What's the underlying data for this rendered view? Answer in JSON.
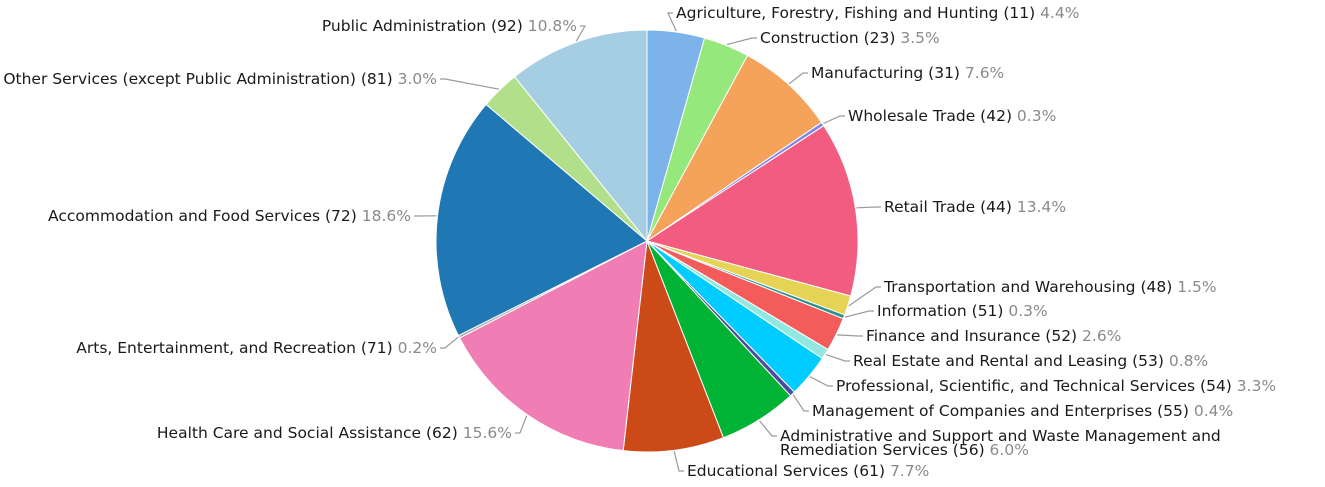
{
  "chart_data": {
    "type": "pie",
    "title": "",
    "slices": [
      {
        "label": "Agriculture, Forestry, Fishing and Hunting (11)",
        "percent_label": "4.4%",
        "value": 4.4,
        "color": "#7cb3e9"
      },
      {
        "label": "Construction (23)",
        "percent_label": "3.5%",
        "value": 3.5,
        "color": "#94e87c"
      },
      {
        "label": "Manufacturing (31)",
        "percent_label": "7.6%",
        "value": 7.6,
        "color": "#f5a25b"
      },
      {
        "label": "Wholesale Trade (42)",
        "percent_label": "0.3%",
        "value": 0.3,
        "color": "#8085e9"
      },
      {
        "label": "Retail Trade (44)",
        "percent_label": "13.4%",
        "value": 13.4,
        "color": "#f15c80"
      },
      {
        "label": "Transportation and Warehousing (48)",
        "percent_label": "1.5%",
        "value": 1.5,
        "color": "#e4d354"
      },
      {
        "label": "Information (51)",
        "percent_label": "0.3%",
        "value": 0.3,
        "color": "#2b908f"
      },
      {
        "label": "Finance and Insurance (52)",
        "percent_label": "2.6%",
        "value": 2.6,
        "color": "#f45b5b"
      },
      {
        "label": "Real Estate and Rental and Leasing (53)",
        "percent_label": "0.8%",
        "value": 0.8,
        "color": "#91e8e1"
      },
      {
        "label": "Professional, Scientific, and Technical Services (54)",
        "percent_label": "3.3%",
        "value": 3.3,
        "color": "#00ccff"
      },
      {
        "label": "Management of Companies and Enterprises (55)",
        "percent_label": "0.4%",
        "value": 0.4,
        "color": "#4a4a9e"
      },
      {
        "label": "Administrative and Support and Waste Management and Remediation Services (56)",
        "label_lines": [
          "Administrative and Support and Waste Management and",
          "Remediation Services (56)"
        ],
        "percent_label": "6.0%",
        "value": 6.0,
        "color": "#00b335"
      },
      {
        "label": "Educational Services (61)",
        "percent_label": "7.7%",
        "value": 7.7,
        "color": "#cc4a17"
      },
      {
        "label": "Health Care and Social Assistance (62)",
        "percent_label": "15.6%",
        "value": 15.6,
        "color": "#f07eb4"
      },
      {
        "label": "Arts, Entertainment, and Recreation (71)",
        "percent_label": "0.2%",
        "value": 0.2,
        "color": "#a8a8a8"
      },
      {
        "label": "Accommodation and Food Services (72)",
        "percent_label": "18.6%",
        "value": 18.6,
        "color": "#1f77b4"
      },
      {
        "label": "Other Services (except Public Administration) (81)",
        "percent_label": "3.0%",
        "value": 3.0,
        "color": "#b2df8a"
      },
      {
        "label": "Public Administration (92)",
        "percent_label": "10.8%",
        "value": 10.8,
        "color": "#a6cee3"
      }
    ]
  }
}
